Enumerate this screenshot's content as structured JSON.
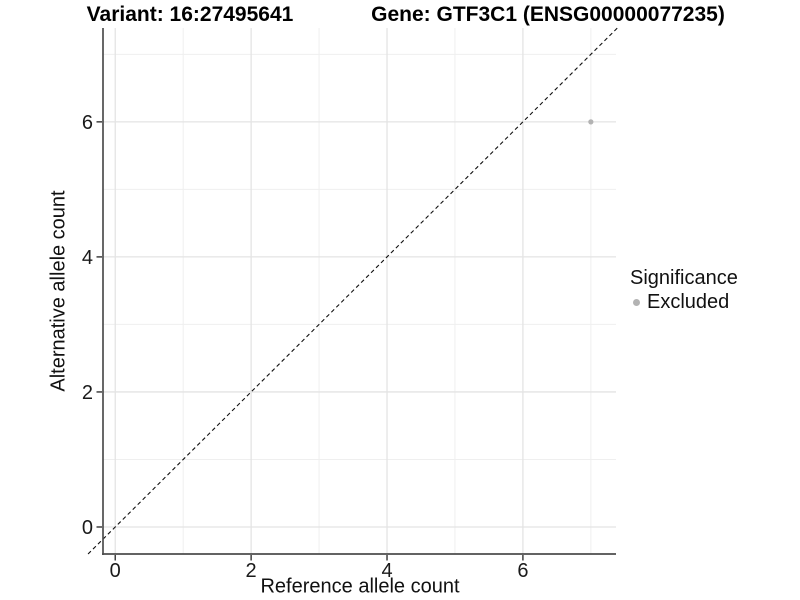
{
  "chart_data": {
    "type": "scatter",
    "title_variant": "Variant: 16:27495641",
    "title_gene": "Gene: GTF3C1 (ENSG00000077235)",
    "xlabel": "Reference allele count",
    "ylabel": "Alternative allele count",
    "x_ticks": [
      0,
      2,
      4,
      6
    ],
    "y_ticks": [
      0,
      2,
      4,
      6
    ],
    "x_minor_ticks": [
      1,
      3,
      5,
      7
    ],
    "y_minor_ticks": [
      1,
      3,
      5,
      7
    ],
    "xlim": [
      -0.18,
      7.37
    ],
    "ylim": [
      -0.4,
      7.39
    ],
    "grid": true,
    "points": [
      {
        "x": 7,
        "y": 6,
        "significance": "Excluded"
      }
    ],
    "identity_line": {
      "slope": 1,
      "intercept": 0,
      "style": "dashed"
    },
    "legend": {
      "title": "Significance",
      "position": "right",
      "entries": [
        {
          "label": "Excluded",
          "color": "#b3b3b3"
        }
      ]
    },
    "colors": {
      "point": "#b3b3b3",
      "grid_major": "#e4e4e4",
      "grid_minor": "#efefef",
      "axis_line": "#4d4d4d",
      "tick_mark": "#333333",
      "dashed_line": "#111111"
    }
  }
}
